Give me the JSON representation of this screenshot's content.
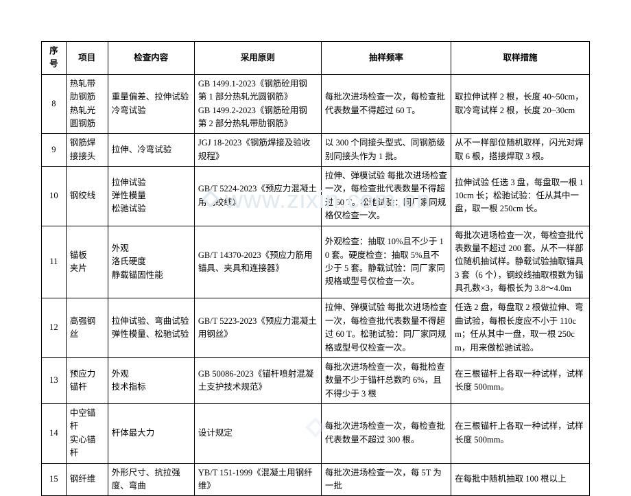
{
  "watermark": {
    "text": "www.zixin.com.cn"
  },
  "table": {
    "columns": [
      "序号",
      "项目",
      "检查内容",
      "采用原则",
      "抽样频率",
      "取样措施"
    ],
    "rows": [
      {
        "seq": "8",
        "item": "热轧带肋钢筋\n热轧光圆钢筋",
        "check": "重量偏差、拉伸试验\n冷弯试验",
        "principle": "GB 1499.1-2023《钢筋砼用钢 第 1 部分热轧光圆钢筋》\nGB 1499.2-2023《钢筋砼用钢 第 2 部分热轧带肋钢筋》",
        "freq": "每批次进场检查一次，每检查批代表数量不得超过 60 T。",
        "measure": "取拉伸试样 2 根，长度 40~50cm，取冷弯试样 2 根，长度 20~30cm"
      },
      {
        "seq": "9",
        "item": "钢筋焊接接头",
        "check": "拉伸、冷弯试验",
        "principle": "JGJ 18-2023《钢筋焊接及验收规程》",
        "freq": "以 300 个同接头型式、同钢筋级别同接头作为 1 批。",
        "measure": "从不一样部位随机取样，闪光对焊取 6 根，搭接焊取 3 根。"
      },
      {
        "seq": "10",
        "item": "钢绞线",
        "check": "拉伸试验\n弹性模量\n松驰试验",
        "principle": "GB/T 5224-2023《预应力混凝土用钢绞线》",
        "freq": "拉伸、弹模试验 每批次进场检查一次，每检查批代表数量不得超过 60 T。松驰试验：同厂家同规格仅检查一次。",
        "measure": "拉伸试验 任选 3 盘，每盘取一根 110cm 长；松驰试验：任从其中一盘，取一根 250cm 长。"
      },
      {
        "seq": "11",
        "item": "锚板\n夹片",
        "check": "外观\n洛氏硬度\n静载锚固性能",
        "principle": "GB/T 14370-2023《预应力筋用锚具、夹具和连接器》",
        "freq": "外观检查：抽取 10%且不少于 10 套。硬度检查：抽取 5%且不少于 5 套。静载试验：同厂家同规格或型号仅检查一次。",
        "measure": "每批次进场检查一次，每检查批代表数量不超过 200 套。从不一样部位随机抽试样。静载试验抽取锚具 3 套（6 个），钢绞线抽取根数为锚具孔数×3，每根长为 3.8～4.0m"
      },
      {
        "seq": "12",
        "item": "高强钢丝",
        "check": "拉伸试验、弯曲试验\n弹性模量、松驰试验",
        "principle": "GB/T 5223-2023《预应力混凝土用钢丝》",
        "freq": "拉伸、弹模试验 每批次进场检查一次，每检查批代表数量不得超过 60 T。松驰试验：同厂家同规格或型号仅检查一次。",
        "measure": "任选 2 盘，每盘取 2 根做拉伸、弯曲试验，每根长度应不小于 110cm；任从其中一盘，取一根 250cm，用来做松驰试验。"
      },
      {
        "seq": "13",
        "item": "预应力锚杆",
        "check": "外观\n技术指标",
        "principle": "GB 50086-2023《锚杆喷射混凝土支护技术规范》",
        "freq": "每批次进场检查一次，每批检查数量不少于锚杆总数旳 6%，且不得少于 3 根",
        "measure": "在三根锚杆上各取一种试样，试样长度 500mm。"
      },
      {
        "seq": "14",
        "item": "中空锚杆\n实心锚杆",
        "check": "杆体最大力",
        "principle": "设计规定",
        "freq": "每批次进场检查一次，每检查批代表数量不超过 300 根。",
        "measure": "在三根锚杆上各取一种试样，试样长度 500mm。"
      },
      {
        "seq": "15",
        "item": "钢纤维",
        "check": "外形尺寸、抗拉强度、弯曲",
        "principle": "YB/T 151-1999《混凝土用钢纤维》",
        "freq": "每批次进场检查一次，每 5T 为一批",
        "measure": "在每批中随机抽取 100 根以上"
      }
    ]
  }
}
